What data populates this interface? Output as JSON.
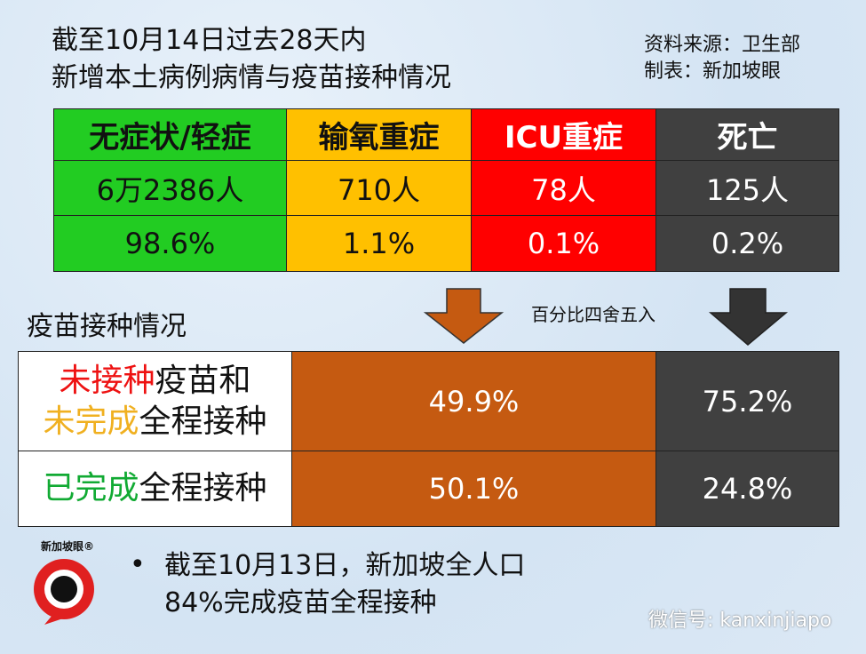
{
  "header": {
    "title": [
      "截至10月14日过去28天内",
      "新增本土病例病情与疫苗接种情况"
    ],
    "source": [
      "资料来源：卫生部",
      "制表：新加坡眼"
    ]
  },
  "table": {
    "columns": [
      "无症状/轻症",
      "输氧重症",
      "ICU重症",
      "死亡"
    ],
    "rows": [
      [
        "6万2386人",
        "710人",
        "78人",
        "125人"
      ],
      [
        "98.6%",
        "1.1%",
        "0.1%",
        "0.2%"
      ]
    ]
  },
  "note": "百分比四舍五入",
  "vaccination": {
    "title": "疫苗接种情况",
    "rows": [
      {
        "label": [
          [
            "未接种",
            "疫苗和"
          ],
          [
            "未完成",
            "全程接种"
          ]
        ],
        "values": [
          "49.9%",
          "75.2%"
        ]
      },
      {
        "label": [
          [
            "已完成",
            "全程接种"
          ]
        ],
        "values": [
          "50.1%",
          "24.8%"
        ]
      }
    ]
  },
  "footnote": [
    "截至10月13日，新加坡全人口",
    "84%完成疫苗全程接种"
  ],
  "logo": "新加坡眼®",
  "watermark": "微信号: kanxinjiapo"
}
